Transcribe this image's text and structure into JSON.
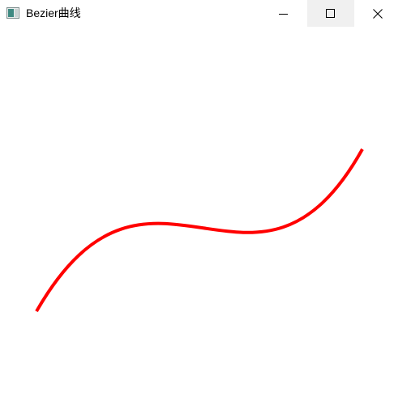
{
  "window": {
    "title": "Bezier曲线",
    "icon": "app-window-icon",
    "controls": [
      "minimize-icon",
      "maximize-icon",
      "close-icon"
    ]
  },
  "curve": {
    "color": "#ff0000",
    "control_points": [
      [
        45,
        384
      ],
      [
        185,
        140
      ],
      [
        315,
        420
      ],
      [
        447,
        184
      ]
    ]
  }
}
